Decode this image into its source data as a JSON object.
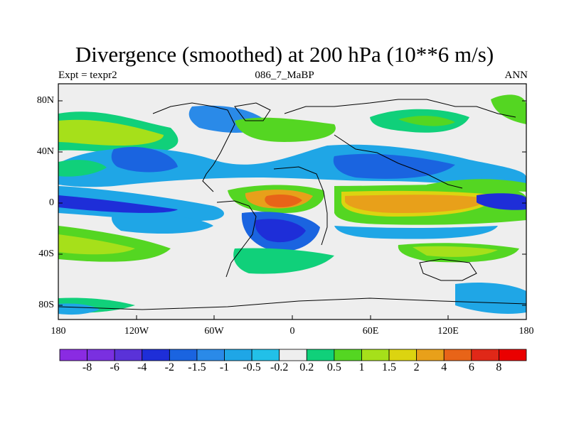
{
  "title": "Divergence (smoothed) at 200 hPa (10**6 m/s)",
  "subtitle_left": "Expt = texpr2",
  "subtitle_center": "086_7_MaBP",
  "subtitle_right": "ANN",
  "lat_labels": [
    "80N",
    "40N",
    "0",
    "40S",
    "80S"
  ],
  "lon_labels": [
    "180",
    "120W",
    "60W",
    "0",
    "60E",
    "120E",
    "180"
  ],
  "colorbar": {
    "labels": [
      "-8",
      "-6",
      "-4",
      "-2",
      "-1.5",
      "-1",
      "-0.5",
      "-0.2",
      "0.2",
      "0.5",
      "1",
      "1.5",
      "2",
      "4",
      "6",
      "8"
    ],
    "colors": [
      "#8a2be2",
      "#7a30e0",
      "#5a32d8",
      "#1e2ed8",
      "#1a64e0",
      "#2a8ae8",
      "#1fa6e6",
      "#22c0e8",
      "#eeeeee",
      "#10d07a",
      "#54d622",
      "#a6e01a",
      "#dcd410",
      "#e8a01a",
      "#e86418",
      "#e02818",
      "#ea0000"
    ]
  },
  "map_colors": {
    "neutral": "#eeeeee",
    "weak_pos": "#10d07a",
    "pos": "#54d622",
    "strong_pos": "#a6e01a",
    "very_pos": "#dcd410",
    "orange": "#e8a01a",
    "red": "#e86418",
    "weak_neg": "#22c0e8",
    "neg": "#1fa6e6",
    "blue": "#2a8ae8",
    "deep_blue": "#1a64e0",
    "darkest_blue": "#1e2ed8"
  }
}
